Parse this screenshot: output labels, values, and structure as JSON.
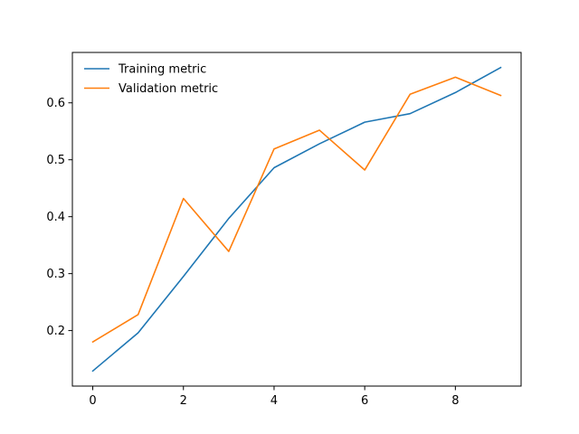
{
  "chart_data": {
    "type": "line",
    "title": "",
    "xlabel": "",
    "ylabel": "",
    "x": [
      0,
      1,
      2,
      3,
      4,
      5,
      6,
      7,
      8,
      9
    ],
    "series": [
      {
        "name": "Training metric",
        "color": "#1f77b4",
        "values": [
          0.129,
          0.196,
          0.295,
          0.397,
          0.486,
          0.528,
          0.566,
          0.581,
          0.618,
          0.662
        ]
      },
      {
        "name": "Validation metric",
        "color": "#ff7f0e",
        "values": [
          0.18,
          0.228,
          0.432,
          0.339,
          0.519,
          0.552,
          0.482,
          0.615,
          0.645,
          0.613
        ]
      }
    ],
    "xlim": [
      -0.45,
      9.45
    ],
    "ylim": [
      0.1025,
      0.6885
    ],
    "xticks": [
      0,
      2,
      4,
      6,
      8
    ],
    "yticks": [
      0.2,
      0.3,
      0.4,
      0.5,
      0.6
    ],
    "xtick_labels": [
      "0",
      "2",
      "4",
      "6",
      "8"
    ],
    "ytick_labels": [
      "0.2",
      "0.3",
      "0.4",
      "0.5",
      "0.6"
    ],
    "grid": false,
    "legend_position": "upper-left"
  }
}
